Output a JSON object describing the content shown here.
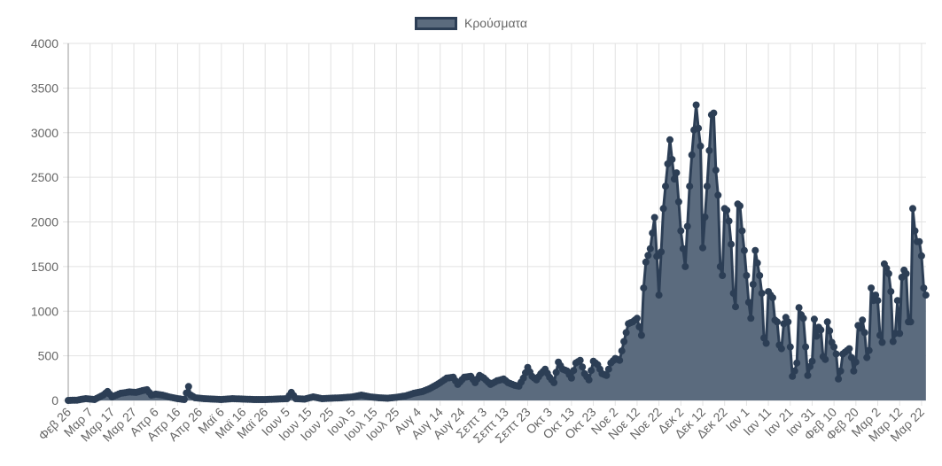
{
  "chart_data": {
    "type": "area",
    "title": "",
    "xlabel": "",
    "ylabel": "",
    "ylim": [
      0,
      4000
    ],
    "yticks": [
      0,
      500,
      1000,
      1500,
      2000,
      2500,
      3000,
      3500,
      4000
    ],
    "grid": true,
    "legend_position": "top",
    "x_tick_labels": [
      "Φεβ 26",
      "Μαρ 7",
      "Μαρ 17",
      "Μαρ 27",
      "Απρ 6",
      "Απρ 16",
      "Απρ 26",
      "Μαϊ 6",
      "Μαϊ 16",
      "Μαϊ 26",
      "Ιουν 5",
      "Ιουν 15",
      "Ιουν 25",
      "Ιουλ 5",
      "Ιουλ 15",
      "Ιουλ 25",
      "Αυγ 4",
      "Αυγ 14",
      "Αυγ 24",
      "Σεπτ 3",
      "Σεπτ 13",
      "Σεπτ 23",
      "Οκτ 3",
      "Οκτ 13",
      "Οκτ 23",
      "Νοε 2",
      "Νοε 12",
      "Νοε 22",
      "Δεκ 2",
      "Δεκ 12",
      "Δεκ 22",
      "Ιαν 1",
      "Ιαν 11",
      "Ιαν 21",
      "Ιαν 31",
      "Φεβ 10",
      "Φεβ 20",
      "Μαρ 2",
      "Μαρ 12",
      "Μαρ 22"
    ],
    "x_tick_interval_days": 10,
    "series": [
      {
        "name": "Κρούσματα",
        "color": "#2c3e55",
        "fill": "#5b6b7e",
        "keypoints_day_value": [
          [
            0,
            0
          ],
          [
            4,
            3
          ],
          [
            8,
            20
          ],
          [
            12,
            10
          ],
          [
            16,
            60
          ],
          [
            18,
            100
          ],
          [
            20,
            40
          ],
          [
            24,
            80
          ],
          [
            28,
            95
          ],
          [
            31,
            90
          ],
          [
            34,
            110
          ],
          [
            36,
            120
          ],
          [
            38,
            60
          ],
          [
            40,
            70
          ],
          [
            43,
            60
          ],
          [
            46,
            40
          ],
          [
            50,
            20
          ],
          [
            53,
            10
          ],
          [
            55,
            156
          ],
          [
            56,
            60
          ],
          [
            58,
            30
          ],
          [
            62,
            20
          ],
          [
            66,
            15
          ],
          [
            70,
            10
          ],
          [
            75,
            20
          ],
          [
            80,
            15
          ],
          [
            85,
            10
          ],
          [
            90,
            10
          ],
          [
            95,
            15
          ],
          [
            100,
            20
          ],
          [
            102,
            90
          ],
          [
            104,
            20
          ],
          [
            108,
            15
          ],
          [
            112,
            40
          ],
          [
            116,
            20
          ],
          [
            120,
            25
          ],
          [
            125,
            30
          ],
          [
            130,
            40
          ],
          [
            134,
            60
          ],
          [
            138,
            40
          ],
          [
            142,
            30
          ],
          [
            146,
            25
          ],
          [
            150,
            35
          ],
          [
            154,
            50
          ],
          [
            158,
            80
          ],
          [
            162,
            100
          ],
          [
            165,
            130
          ],
          [
            168,
            170
          ],
          [
            170,
            200
          ],
          [
            173,
            250
          ],
          [
            176,
            260
          ],
          [
            178,
            180
          ],
          [
            181,
            260
          ],
          [
            184,
            270
          ],
          [
            186,
            200
          ],
          [
            188,
            280
          ],
          [
            190,
            250
          ],
          [
            193,
            180
          ],
          [
            196,
            220
          ],
          [
            199,
            240
          ],
          [
            201,
            200
          ],
          [
            204,
            170
          ],
          [
            206,
            160
          ],
          [
            208,
            250
          ],
          [
            210,
            370
          ],
          [
            212,
            270
          ],
          [
            214,
            230
          ],
          [
            216,
            300
          ],
          [
            218,
            350
          ],
          [
            220,
            260
          ],
          [
            222,
            200
          ],
          [
            224,
            430
          ],
          [
            226,
            350
          ],
          [
            228,
            330
          ],
          [
            230,
            250
          ],
          [
            232,
            420
          ],
          [
            234,
            450
          ],
          [
            236,
            300
          ],
          [
            238,
            230
          ],
          [
            240,
            440
          ],
          [
            242,
            400
          ],
          [
            244,
            300
          ],
          [
            246,
            280
          ],
          [
            248,
            420
          ],
          [
            250,
            470
          ],
          [
            252,
            450
          ],
          [
            254,
            660
          ],
          [
            256,
            860
          ],
          [
            258,
            880
          ],
          [
            260,
            920
          ],
          [
            262,
            730
          ],
          [
            263,
            1260
          ],
          [
            264,
            1550
          ],
          [
            266,
            1700
          ],
          [
            268,
            2050
          ],
          [
            270,
            1180
          ],
          [
            272,
            2150
          ],
          [
            274,
            2650
          ],
          [
            275,
            2920
          ],
          [
            277,
            2480
          ],
          [
            278,
            2550
          ],
          [
            280,
            1900
          ],
          [
            282,
            1500
          ],
          [
            284,
            2400
          ],
          [
            285,
            2750
          ],
          [
            287,
            3310
          ],
          [
            288,
            3050
          ],
          [
            289,
            2850
          ],
          [
            290,
            1710
          ],
          [
            292,
            2400
          ],
          [
            294,
            3200
          ],
          [
            295,
            3220
          ],
          [
            296,
            2580
          ],
          [
            297,
            2300
          ],
          [
            298,
            1500
          ],
          [
            299,
            1400
          ],
          [
            300,
            2150
          ],
          [
            301,
            2130
          ],
          [
            302,
            2010
          ],
          [
            303,
            1750
          ],
          [
            304,
            1200
          ],
          [
            305,
            1050
          ],
          [
            306,
            2200
          ],
          [
            307,
            2180
          ],
          [
            308,
            1900
          ],
          [
            309,
            1680
          ],
          [
            310,
            1400
          ],
          [
            311,
            1100
          ],
          [
            312,
            920
          ],
          [
            313,
            1300
          ],
          [
            314,
            1680
          ],
          [
            315,
            1540
          ],
          [
            316,
            1400
          ],
          [
            317,
            1200
          ],
          [
            318,
            700
          ],
          [
            319,
            640
          ],
          [
            320,
            1220
          ],
          [
            321,
            1180
          ],
          [
            322,
            1150
          ],
          [
            323,
            900
          ],
          [
            324,
            880
          ],
          [
            325,
            620
          ],
          [
            326,
            580
          ],
          [
            327,
            860
          ],
          [
            328,
            930
          ],
          [
            329,
            880
          ],
          [
            330,
            600
          ],
          [
            331,
            270
          ],
          [
            332,
            330
          ],
          [
            333,
            420
          ],
          [
            334,
            1040
          ],
          [
            335,
            960
          ],
          [
            336,
            920
          ],
          [
            337,
            600
          ],
          [
            338,
            280
          ],
          [
            339,
            380
          ],
          [
            340,
            440
          ],
          [
            341,
            910
          ],
          [
            342,
            720
          ],
          [
            343,
            820
          ],
          [
            344,
            790
          ],
          [
            345,
            490
          ],
          [
            346,
            460
          ],
          [
            347,
            880
          ],
          [
            348,
            780
          ],
          [
            349,
            650
          ],
          [
            350,
            600
          ],
          [
            351,
            520
          ],
          [
            352,
            240
          ],
          [
            353,
            330
          ],
          [
            354,
            520
          ],
          [
            355,
            540
          ],
          [
            356,
            560
          ],
          [
            357,
            580
          ],
          [
            358,
            480
          ],
          [
            359,
            330
          ],
          [
            360,
            430
          ],
          [
            361,
            840
          ],
          [
            362,
            810
          ],
          [
            363,
            900
          ],
          [
            364,
            760
          ],
          [
            365,
            480
          ],
          [
            366,
            560
          ],
          [
            367,
            1260
          ],
          [
            368,
            1120
          ],
          [
            369,
            1180
          ],
          [
            370,
            1120
          ],
          [
            371,
            730
          ],
          [
            372,
            650
          ],
          [
            373,
            1530
          ],
          [
            374,
            1480
          ],
          [
            375,
            1420
          ],
          [
            376,
            1220
          ],
          [
            377,
            660
          ],
          [
            378,
            750
          ],
          [
            379,
            1120
          ],
          [
            380,
            750
          ],
          [
            381,
            1380
          ],
          [
            382,
            1460
          ],
          [
            383,
            1420
          ],
          [
            384,
            880
          ],
          [
            385,
            880
          ],
          [
            386,
            2150
          ],
          [
            387,
            1900
          ],
          [
            388,
            1780
          ],
          [
            389,
            1780
          ],
          [
            390,
            1620
          ],
          [
            391,
            1260
          ],
          [
            392,
            1180
          ]
        ]
      }
    ]
  },
  "legend": {
    "label": "Κρούσματα"
  }
}
